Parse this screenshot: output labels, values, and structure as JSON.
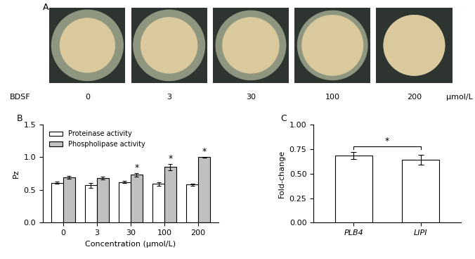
{
  "panel_a": {
    "label": "A",
    "row_label": "BDSF",
    "concentrations": [
      0,
      3,
      30,
      100,
      200
    ],
    "unit": "μmol/L"
  },
  "chart_data": [
    {
      "type": "bar",
      "title": "B",
      "x_label": "Concentration (μmol/L)",
      "y_label": "Pz",
      "categories": [
        "0",
        "3",
        "30",
        "100",
        "200"
      ],
      "series": [
        {
          "name": "Proteinase activity",
          "color": "#ffffff",
          "values": [
            0.61,
            0.57,
            0.62,
            0.59,
            0.58
          ],
          "errors": [
            0.02,
            0.04,
            0.015,
            0.025,
            0.015
          ],
          "significance": [
            null,
            null,
            null,
            null,
            null
          ]
        },
        {
          "name": "Phospholipase activity",
          "color": "#c0c0c0",
          "values": [
            0.69,
            0.68,
            0.73,
            0.85,
            1.0
          ],
          "errors": [
            0.025,
            0.02,
            0.03,
            0.05,
            0.005
          ],
          "significance": [
            null,
            null,
            "*",
            "*",
            "*"
          ]
        }
      ],
      "ylim": [
        0,
        1.5
      ],
      "yticks": [
        {
          "value": 0,
          "label": "0.0"
        },
        {
          "value": 0.5,
          "label": "0.5"
        },
        {
          "value": 1.0,
          "label": "1.0"
        },
        {
          "value": 1.5,
          "label": "1.5"
        }
      ],
      "legend": "upper left",
      "grid": false
    },
    {
      "type": "bar",
      "title": "C",
      "y_label": "Fold-change",
      "categories": [
        "PLB4",
        "LIPI"
      ],
      "values": [
        0.68,
        0.64
      ],
      "errors": [
        0.035,
        0.05
      ],
      "color": "#ffffff",
      "annotations": [
        {
          "text": "*",
          "between": [
            "PLB4",
            "LIPI"
          ]
        }
      ],
      "ylim": [
        0,
        1.0
      ],
      "yticks": [
        {
          "value": 0,
          "label": "0.00"
        },
        {
          "value": 0.25,
          "label": "0.25"
        },
        {
          "value": 0.5,
          "label": "0.50"
        },
        {
          "value": 0.75,
          "label": "0.75"
        },
        {
          "value": 1.0,
          "label": "1.00"
        }
      ],
      "grid": false
    }
  ]
}
